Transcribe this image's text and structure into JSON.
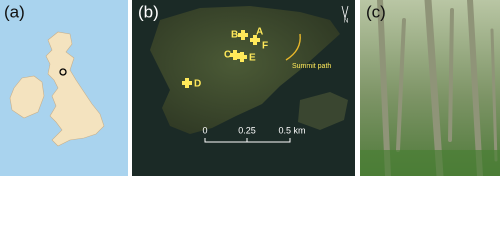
{
  "panels": [
    {
      "label": "(a)"
    },
    {
      "label": "(b)",
      "sites": [
        "A",
        "B",
        "C",
        "D",
        "E",
        "F"
      ],
      "path_label": "Summit path",
      "scale": [
        "0",
        "0.25",
        "0.5 km"
      ],
      "north": "N"
    },
    {
      "label": "(c)"
    }
  ]
}
